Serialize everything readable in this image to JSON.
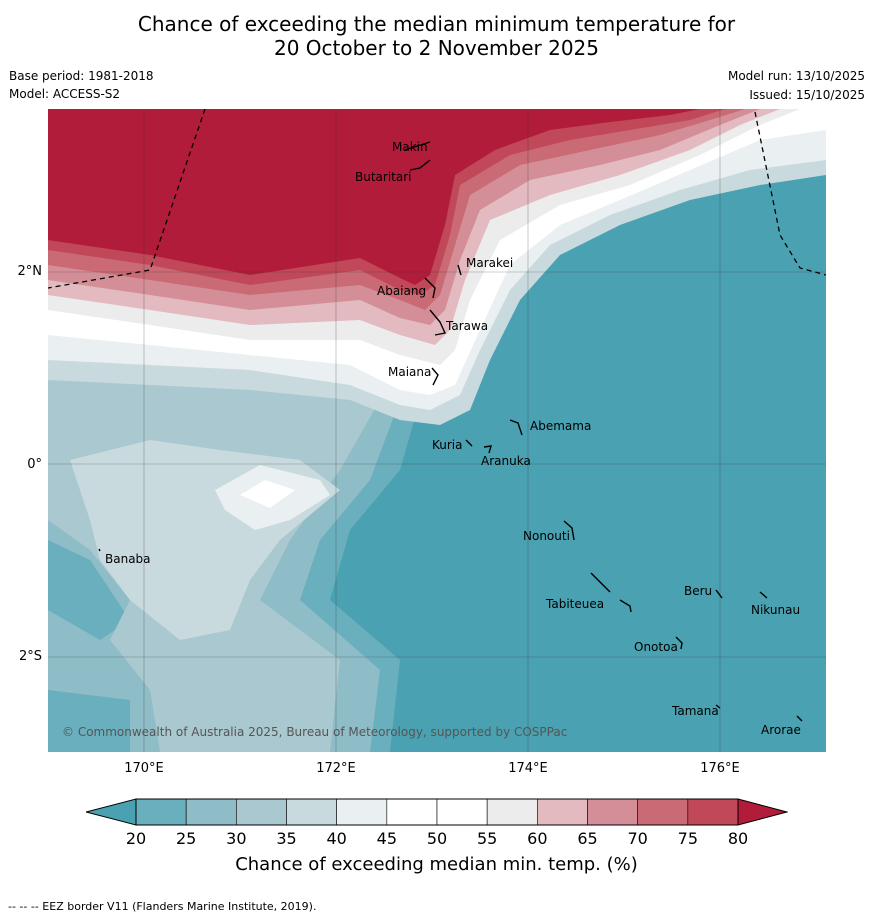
{
  "title": {
    "line1": "Chance of exceeding the median minimum temperature for",
    "line2": "20 October to 2 November 2025"
  },
  "meta": {
    "base_period": "Base period: 1981-2018",
    "model": "Model: ACCESS-S2",
    "model_run": "Model run: 13/10/2025",
    "issued": "Issued: 15/10/2025"
  },
  "axes": {
    "lat_ticks": [
      "2°N",
      "0°",
      "2°S"
    ],
    "lon_ticks": [
      "170°E",
      "172°E",
      "174°E",
      "176°E"
    ]
  },
  "places": {
    "makin": "Makin",
    "butaritari": "Butaritari",
    "marakei": "Marakei",
    "abaiang": "Abaiang",
    "tarawa": "Tarawa",
    "maiana": "Maiana",
    "abemama": "Abemama",
    "kuria": "Kuria",
    "aranuka": "Aranuka",
    "nonouti": "Nonouti",
    "banaba": "Banaba",
    "beru": "Beru",
    "tabiteuea": "Tabiteuea",
    "nikunau": "Nikunau",
    "onotoa": "Onotoa",
    "tamana": "Tamana",
    "arorae": "Arorae"
  },
  "copyright": "© Commonwealth of Australia 2025, Bureau of Meteorology, supported by COSPPac",
  "colorbar": {
    "ticks": [
      "20",
      "25",
      "30",
      "35",
      "40",
      "45",
      "50",
      "55",
      "60",
      "65",
      "70",
      "75",
      "80"
    ],
    "label": "Chance of exceeding median min. temp. (%)",
    "colors": [
      "#4aa1b1",
      "#6aafbd",
      "#8ebcc7",
      "#aac8cf",
      "#c9dade",
      "#eaf0f2",
      "#ffffff",
      "#ffffff",
      "#ececec",
      "#e2bac0",
      "#d48e97",
      "#c96a74",
      "#c04858",
      "#b11c3a"
    ]
  },
  "footer": "--  --  -- EEZ border V11 (Flanders Marine Institute, 2019)."
}
